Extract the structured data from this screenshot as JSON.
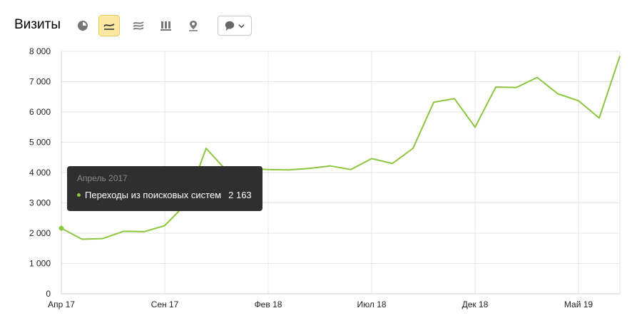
{
  "header": {
    "title": "Визиты",
    "toolbar": [
      {
        "icon": "pie-chart-icon",
        "active": false
      },
      {
        "icon": "line-chart-icon",
        "active": true
      },
      {
        "icon": "area-chart-icon",
        "active": false
      },
      {
        "icon": "bar-chart-icon",
        "active": false
      },
      {
        "icon": "map-pin-icon",
        "active": false
      }
    ],
    "dropdown_icon": "speech-bubble-icon"
  },
  "colors": {
    "series": "#8cc63f",
    "active_bg": "#fde8a3",
    "tooltip_bg": "#2f2f2f"
  },
  "tooltip": {
    "date": "Апрель 2017",
    "series_label": "Переходы из поисковых систем",
    "value": "2 163"
  },
  "chart_data": {
    "type": "line",
    "title": "",
    "xlabel": "",
    "ylabel": "",
    "ylim": [
      0,
      8000
    ],
    "y_ticks": [
      0,
      1000,
      2000,
      3000,
      4000,
      5000,
      6000,
      7000,
      8000
    ],
    "y_tick_labels": [
      "0",
      "1 000",
      "2 000",
      "3 000",
      "4 000",
      "5 000",
      "6 000",
      "7 000",
      "8 000"
    ],
    "x_tick_labels": [
      {
        "label": "Апр 17",
        "index": 0
      },
      {
        "label": "Сен 17",
        "index": 5
      },
      {
        "label": "Фев 18",
        "index": 10
      },
      {
        "label": "Июл 18",
        "index": 15
      },
      {
        "label": "Дек 18",
        "index": 20
      },
      {
        "label": "Май 19",
        "index": 25
      }
    ],
    "grid": true,
    "highlight_index": 0,
    "series": [
      {
        "name": "Переходы из поисковых систем",
        "values": [
          2163,
          1800,
          1820,
          2060,
          2050,
          2250,
          2950,
          4800,
          4050,
          4130,
          4100,
          4090,
          4140,
          4220,
          4100,
          4460,
          4300,
          4800,
          6320,
          6440,
          5500,
          6820,
          6810,
          7140,
          6600,
          6370,
          5800,
          7850
        ]
      }
    ]
  }
}
